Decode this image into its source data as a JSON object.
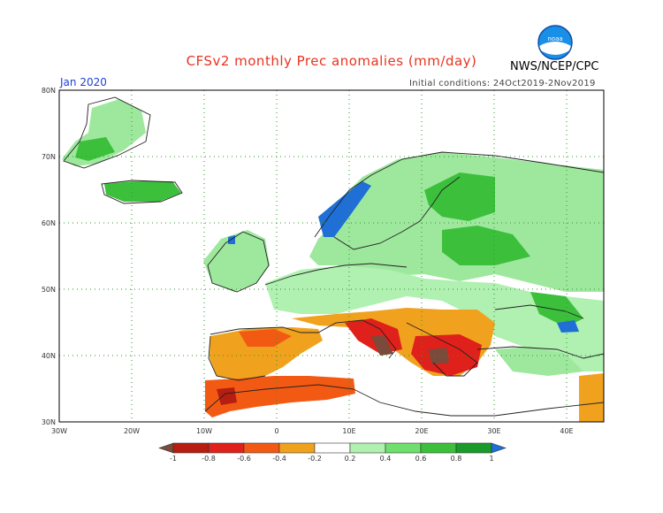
{
  "header": {
    "title": "CFSv2 monthly Prec anomalies (mm/day)",
    "agency": "NWS/NCEP/CPC",
    "logo_text": "noaa",
    "month_label": "Jan 2020",
    "init_label": "Initial conditions: 24Oct2019-2Nov2019"
  },
  "map": {
    "lat_labels": [
      "80N",
      "70N",
      "60N",
      "50N",
      "40N",
      "30N"
    ],
    "lon_labels": [
      "30W",
      "20W",
      "10W",
      "0",
      "10E",
      "20E",
      "30E",
      "40E"
    ]
  },
  "colorbar": {
    "tick_labels": [
      "-1",
      "-0.8",
      "-0.6",
      "-0.4",
      "-0.2",
      "0.2",
      "0.4",
      "0.6",
      "0.8",
      "1"
    ],
    "colors": [
      "#7a4a3a",
      "#b51e10",
      "#e0201a",
      "#f25a14",
      "#f0a21e",
      "#ffffff",
      "#b0f0b0",
      "#6ee06e",
      "#3cc03c",
      "#1a9a2a",
      "#1f6fd6"
    ]
  }
}
